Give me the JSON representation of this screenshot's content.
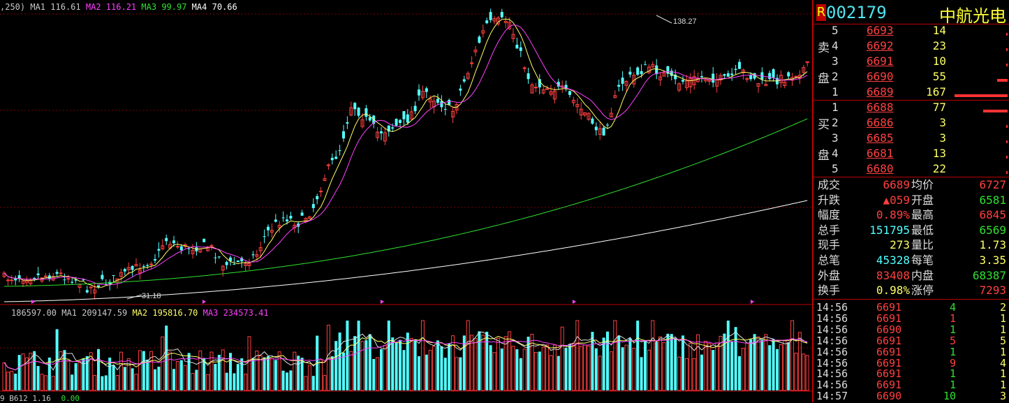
{
  "price_legend": {
    "prefix": ",250)",
    "ma1_label": "MA1",
    "ma1": "116.61",
    "ma2_label": "MA2",
    "ma2": "116.21",
    "ma3_label": "MA3",
    "ma3": "99.97",
    "ma4_label": "MA4",
    "ma4": "70.66"
  },
  "annotations": {
    "high": "138.27",
    "low": "31.18"
  },
  "vol_legend": {
    "vol": "186597.00",
    "ma1_label": "MA1",
    "ma1": "209147.59",
    "ma2_label": "MA2",
    "ma2": "195816.70",
    "ma3_label": "MA3",
    "ma3": "234573.41"
  },
  "bottom_legend": {
    "text": "9 B612 1.16",
    "value": "0.00"
  },
  "colors": {
    "up": "#ff4040",
    "down": "#54ffff",
    "ma1": "#ffff66",
    "ma2": "#ff40ff",
    "ma3": "#30e030",
    "ma4": "#ffffff",
    "grid": "#800000"
  },
  "header": {
    "market_badge": "R",
    "code": "002179",
    "name": "中航光电"
  },
  "order_book": {
    "sell_label_1": "卖",
    "sell_label_2": "盘",
    "buy_label_1": "买",
    "buy_label_2": "盘",
    "asks": [
      {
        "level": "5",
        "price": "6693",
        "vol": "14",
        "bar": 0.02
      },
      {
        "level": "4",
        "price": "6692",
        "vol": "23",
        "bar": 0.03
      },
      {
        "level": "3",
        "price": "6691",
        "vol": "10",
        "bar": 0.01
      },
      {
        "level": "2",
        "price": "6690",
        "vol": "55",
        "bar": 0.2
      },
      {
        "level": "1",
        "price": "6689",
        "vol": "167",
        "bar": 1.0
      }
    ],
    "bids": [
      {
        "level": "1",
        "price": "6688",
        "vol": "77",
        "bar": 0.46
      },
      {
        "level": "2",
        "price": "6686",
        "vol": "3",
        "bar": 0.0
      },
      {
        "level": "3",
        "price": "6685",
        "vol": "3",
        "bar": 0.0
      },
      {
        "level": "4",
        "price": "6681",
        "vol": "13",
        "bar": 0.02
      },
      {
        "level": "5",
        "price": "6680",
        "vol": "22",
        "bar": 0.02
      }
    ]
  },
  "stats": [
    {
      "l1": "成交",
      "v1": "6689",
      "l2": "均价",
      "v2": "6727",
      "c1": "#ff4040",
      "c2": "#ff4040"
    },
    {
      "l1": "升跌",
      "v1": "▲059",
      "l2": "开盘",
      "v2": "6581",
      "c1": "#ff4040",
      "c2": "#30e030"
    },
    {
      "l1": "幅度",
      "v1": "0.89%",
      "l2": "最高",
      "v2": "6845",
      "c1": "#ff4040",
      "c2": "#ff4040"
    },
    {
      "l1": "总手",
      "v1": "151795",
      "l2": "最低",
      "v2": "6569",
      "c1": "#54ffff",
      "c2": "#30e030"
    },
    {
      "l1": "现手",
      "v1": "273",
      "l2": "量比",
      "v2": "1.73",
      "c1": "#ffff66",
      "c2": "#ffff66"
    },
    {
      "l1": "总笔",
      "v1": "45328",
      "l2": "每笔",
      "v2": "3.35",
      "c1": "#54ffff",
      "c2": "#ffff66"
    },
    {
      "l1": "外盘",
      "v1": "83408",
      "l2": "内盘",
      "v2": "68387",
      "c1": "#ff4040",
      "c2": "#30e030"
    },
    {
      "l1": "换手",
      "v1": "0.98%",
      "l2": "涨停",
      "v2": "7293",
      "c1": "#ffff66",
      "c2": "#ff4040"
    }
  ],
  "trades": [
    {
      "time": "14:56",
      "price": "6691",
      "vol": "4",
      "n": "2",
      "vc": "#30e030"
    },
    {
      "time": "14:56",
      "price": "6691",
      "vol": "1",
      "n": "1",
      "vc": "#ff4040"
    },
    {
      "time": "14:56",
      "price": "6690",
      "vol": "1",
      "n": "1",
      "vc": "#30e030"
    },
    {
      "time": "14:56",
      "price": "6691",
      "vol": "5",
      "n": "5",
      "vc": "#ff4040"
    },
    {
      "time": "14:56",
      "price": "6691",
      "vol": "1",
      "n": "1",
      "vc": "#30e030"
    },
    {
      "time": "14:56",
      "price": "6691",
      "vol": "9",
      "n": "4",
      "vc": "#ff4040"
    },
    {
      "time": "14:56",
      "price": "6691",
      "vol": "1",
      "n": "1",
      "vc": "#30e030"
    },
    {
      "time": "14:56",
      "price": "6691",
      "vol": "1",
      "n": "1",
      "vc": "#30e030"
    },
    {
      "time": "14:57",
      "price": "6690",
      "vol": "10",
      "n": "3",
      "vc": "#30e030"
    }
  ]
}
